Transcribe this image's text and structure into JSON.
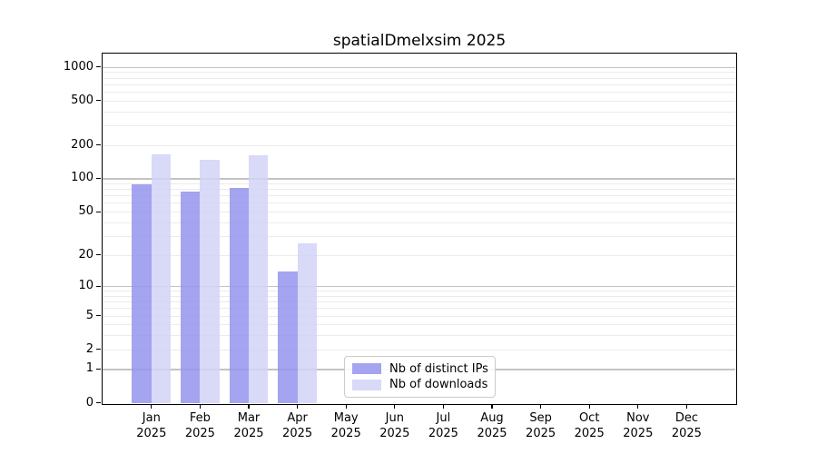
{
  "title": "spatialDmelxsim 2025",
  "legend": {
    "items": [
      {
        "label": "Nb of distinct IPs",
        "color": "#a4a4f0"
      },
      {
        "label": "Nb of downloads",
        "color": "#d9d9f8"
      }
    ]
  },
  "chart_data": {
    "type": "bar",
    "title": "spatialDmelxsim 2025",
    "categories": [
      "Jan 2025",
      "Feb 2025",
      "Mar 2025",
      "Apr 2025",
      "May 2025",
      "Jun 2025",
      "Jul 2025",
      "Aug 2025",
      "Sep 2025",
      "Oct 2025",
      "Nov 2025",
      "Dec 2025"
    ],
    "series": [
      {
        "name": "Nb of distinct IPs",
        "color": "#a4a4f0",
        "values": [
          89,
          77,
          82,
          14,
          0,
          0,
          0,
          0,
          0,
          0,
          0,
          0
        ]
      },
      {
        "name": "Nb of downloads",
        "color": "#d9d9f8",
        "values": [
          165,
          147,
          163,
          26,
          0,
          0,
          0,
          0,
          0,
          0,
          0,
          0
        ]
      }
    ],
    "xlabel": "",
    "ylabel": "",
    "yscale": "log1p",
    "yticks": [
      0,
      1,
      2,
      5,
      10,
      20,
      50,
      100,
      200,
      500,
      1000
    ],
    "ylim": [
      0,
      1300
    ],
    "grid": true,
    "legend_position": "lower center"
  }
}
